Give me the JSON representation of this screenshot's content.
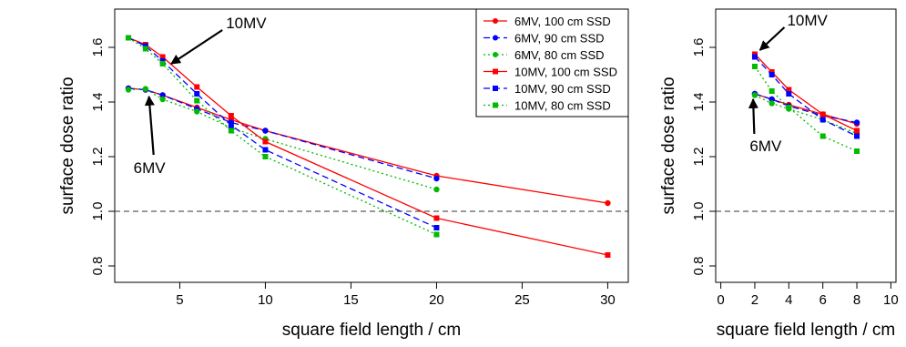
{
  "chart_data": [
    {
      "type": "line",
      "xlabel": "square field length / cm",
      "ylabel": "surface dose ratio",
      "xlim": [
        1.2,
        31.2
      ],
      "ylim": [
        0.74,
        1.74
      ],
      "xticks": [
        5,
        10,
        15,
        20,
        25,
        30
      ],
      "yticks": [
        0.8,
        1.0,
        1.2,
        1.4,
        1.6
      ],
      "reference_line": {
        "y": 1.0,
        "style": "dashed"
      },
      "grid": false,
      "legend": {
        "position": "top-right",
        "entries": [
          "6MV, 100 cm SSD",
          "6MV, 90 cm SSD",
          "6MV, 80 cm SSD",
          "10MV, 100 cm SSD",
          "10MV, 90 cm SSD",
          "10MV, 80 cm SSD"
        ]
      },
      "annotations": [
        {
          "text": "10MV",
          "text_at": [
            7.7,
            1.67
          ],
          "arrow_to": [
            4.5,
            1.54
          ]
        },
        {
          "text": "6MV",
          "text_at": [
            2.3,
            1.14
          ],
          "arrow_to": [
            3.2,
            1.42
          ]
        }
      ],
      "series": [
        {
          "name": "6MV, 100 cm SSD",
          "color": "#ff0000",
          "dash": "solid",
          "marker": "circle",
          "x": [
            2,
            3,
            4,
            6,
            8,
            10,
            20,
            30
          ],
          "y": [
            1.45,
            1.445,
            1.425,
            1.38,
            1.335,
            1.295,
            1.13,
            1.03
          ]
        },
        {
          "name": "6MV, 90 cm SSD",
          "color": "#0000ff",
          "dash": "dashed",
          "marker": "circle",
          "x": [
            2,
            3,
            4,
            6,
            8,
            10,
            20
          ],
          "y": [
            1.45,
            1.445,
            1.425,
            1.375,
            1.325,
            1.295,
            1.12
          ]
        },
        {
          "name": "6MV, 80 cm SSD",
          "color": "#00bb00",
          "dash": "dotted",
          "marker": "circle",
          "x": [
            2,
            3,
            4,
            6,
            8,
            10,
            20
          ],
          "y": [
            1.445,
            1.448,
            1.41,
            1.365,
            1.305,
            1.265,
            1.08
          ]
        },
        {
          "name": "10MV, 100 cm SSD",
          "color": "#ff0000",
          "dash": "solid",
          "marker": "square",
          "x": [
            2,
            3,
            4,
            6,
            8,
            10,
            20,
            30
          ],
          "y": [
            1.635,
            1.61,
            1.565,
            1.455,
            1.35,
            1.255,
            0.975,
            0.84
          ]
        },
        {
          "name": "10MV, 90 cm SSD",
          "color": "#0000ff",
          "dash": "dashed",
          "marker": "square",
          "x": [
            2,
            3,
            4,
            6,
            8,
            10,
            20
          ],
          "y": [
            1.635,
            1.605,
            1.55,
            1.43,
            1.315,
            1.225,
            0.94
          ]
        },
        {
          "name": "10MV, 80 cm SSD",
          "color": "#00bb00",
          "dash": "dotted",
          "marker": "square",
          "x": [
            2,
            3,
            4,
            6,
            8,
            10,
            20
          ],
          "y": [
            1.635,
            1.595,
            1.54,
            1.405,
            1.295,
            1.2,
            0.915
          ]
        }
      ]
    },
    {
      "type": "line",
      "xlabel": "square field length / cm",
      "ylabel": "surface dose ratio",
      "xlim": [
        -0.3,
        10.3
      ],
      "ylim": [
        0.74,
        1.74
      ],
      "xticks": [
        0,
        2,
        4,
        6,
        8,
        10
      ],
      "yticks": [
        0.8,
        1.0,
        1.2,
        1.4,
        1.6
      ],
      "reference_line": {
        "y": 1.0,
        "style": "dashed"
      },
      "grid": false,
      "annotations": [
        {
          "text": "10MV",
          "text_at": [
            3.9,
            1.68
          ],
          "arrow_to": [
            2.3,
            1.59
          ]
        },
        {
          "text": "6MV",
          "text_at": [
            1.7,
            1.22
          ],
          "arrow_to": [
            1.9,
            1.41
          ]
        }
      ],
      "series": [
        {
          "name": "6MV, 100 cm SSD",
          "color": "#ff0000",
          "dash": "solid",
          "marker": "circle",
          "x": [
            2,
            3,
            4,
            6,
            8
          ],
          "y": [
            1.43,
            1.41,
            1.39,
            1.355,
            1.32
          ]
        },
        {
          "name": "6MV, 90 cm SSD",
          "color": "#0000ff",
          "dash": "dashed",
          "marker": "circle",
          "x": [
            2,
            3,
            4,
            6,
            8
          ],
          "y": [
            1.43,
            1.41,
            1.385,
            1.35,
            1.325
          ]
        },
        {
          "name": "6MV, 80 cm SSD",
          "color": "#00bb00",
          "dash": "dotted",
          "marker": "circle",
          "x": [
            2,
            3,
            4,
            6,
            8
          ],
          "y": [
            1.425,
            1.395,
            1.375,
            1.335,
            1.285
          ]
        },
        {
          "name": "10MV, 100 cm SSD",
          "color": "#ff0000",
          "dash": "solid",
          "marker": "square",
          "x": [
            2,
            3,
            4,
            6,
            8
          ],
          "y": [
            1.575,
            1.51,
            1.445,
            1.355,
            1.295
          ]
        },
        {
          "name": "10MV, 90 cm SSD",
          "color": "#0000ff",
          "dash": "dashed",
          "marker": "square",
          "x": [
            2,
            3,
            4,
            6,
            8
          ],
          "y": [
            1.565,
            1.5,
            1.43,
            1.335,
            1.275
          ]
        },
        {
          "name": "10MV, 80 cm SSD",
          "color": "#00bb00",
          "dash": "dotted",
          "marker": "square",
          "x": [
            2,
            3,
            4,
            6,
            8
          ],
          "y": [
            1.53,
            1.44,
            1.38,
            1.275,
            1.22
          ]
        }
      ]
    }
  ]
}
